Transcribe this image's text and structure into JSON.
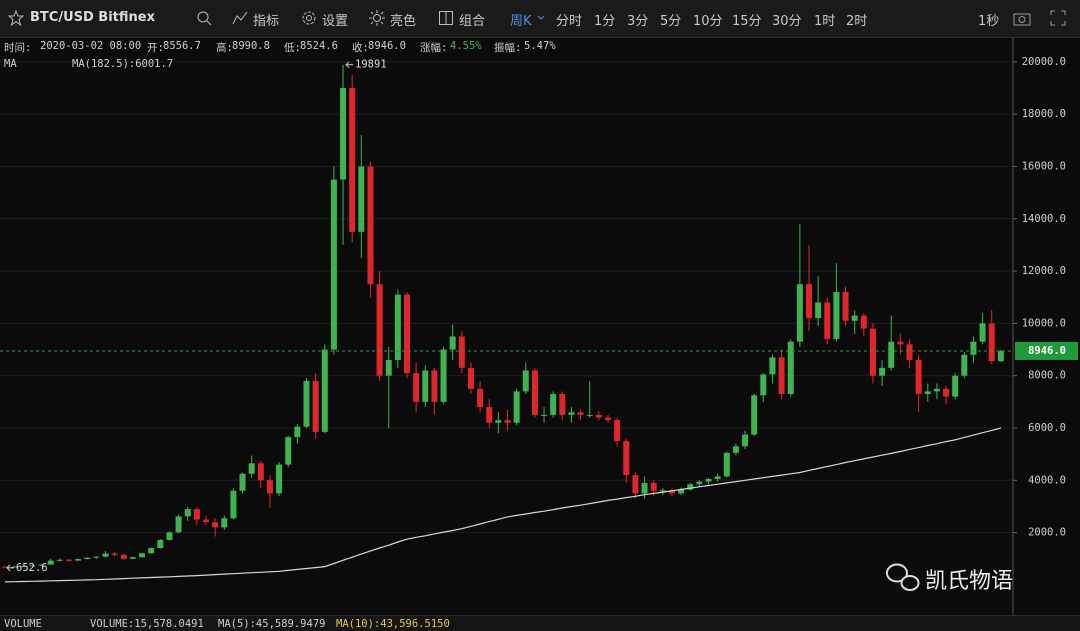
{
  "toolbar": {
    "symbol": "BTC/USD Bitfinex",
    "tools": [
      "指标",
      "设置",
      "亮色",
      "组合"
    ],
    "period": "周K",
    "intervals": [
      "分时",
      "1分",
      "3分",
      "5分",
      "10分",
      "15分",
      "30分",
      "1时",
      "2时"
    ],
    "second": "1秒"
  },
  "info": [
    {
      "label": "时间:",
      "value": "2020-03-02 08:00"
    },
    {
      "label": "开:",
      "value": "8556.7"
    },
    {
      "label": "高:",
      "value": "8990.8"
    },
    {
      "label": "低:",
      "value": "8524.6"
    },
    {
      "label": "收:",
      "value": "8946.0"
    },
    {
      "label": "涨幅:",
      "value": "4.55%"
    },
    {
      "label": "振幅:",
      "value": "5.47%"
    }
  ],
  "ma_legend": {
    "name": "MA",
    "label": "MA(182.5):6001.7"
  },
  "volume_bar": {
    "name": "VOLUME",
    "items": [
      "VOLUME:15,578.0491",
      "MA(5):45,589.9479",
      "MA(10):43,596.5150"
    ]
  },
  "watermark": "凯氏物语",
  "chart_data": {
    "type": "candlestick",
    "ohlc": [
      [
        700,
        720,
        652.6,
        690
      ],
      [
        690,
        720,
        670,
        700
      ],
      [
        700,
        740,
        690,
        720
      ],
      [
        720,
        770,
        700,
        750
      ],
      [
        750,
        800,
        730,
        780
      ],
      [
        780,
        1000,
        770,
        930
      ],
      [
        930,
        1020,
        890,
        960
      ],
      [
        960,
        990,
        900,
        930
      ],
      [
        930,
        1010,
        910,
        990
      ],
      [
        990,
        1060,
        970,
        1040
      ],
      [
        1040,
        1100,
        1000,
        1080
      ],
      [
        1080,
        1290,
        1060,
        1200
      ],
      [
        1200,
        1260,
        1100,
        1150
      ],
      [
        1150,
        1180,
        960,
        1000
      ],
      [
        1000,
        1090,
        980,
        1060
      ],
      [
        1060,
        1230,
        1040,
        1210
      ],
      [
        1210,
        1430,
        1190,
        1410
      ],
      [
        1410,
        1750,
        1390,
        1720
      ],
      [
        1720,
        2050,
        1690,
        2010
      ],
      [
        2010,
        2700,
        1980,
        2620
      ],
      [
        2620,
        3000,
        2450,
        2900
      ],
      [
        2900,
        2980,
        2300,
        2500
      ],
      [
        2500,
        2650,
        2300,
        2400
      ],
      [
        2400,
        2550,
        1850,
        2200
      ],
      [
        2200,
        2650,
        2100,
        2550
      ],
      [
        2550,
        3700,
        2500,
        3600
      ],
      [
        3600,
        4300,
        3500,
        4250
      ],
      [
        4250,
        4950,
        4100,
        4650
      ],
      [
        4650,
        4750,
        3700,
        4000
      ],
      [
        4000,
        4200,
        2950,
        3500
      ],
      [
        3500,
        4700,
        3400,
        4600
      ],
      [
        4600,
        5700,
        4500,
        5650
      ],
      [
        5650,
        6150,
        5400,
        6050
      ],
      [
        6050,
        7900,
        6000,
        7800
      ],
      [
        7800,
        8100,
        5600,
        5850
      ],
      [
        5850,
        9200,
        5800,
        9000
      ],
      [
        9000,
        16000,
        8800,
        15500
      ],
      [
        15500,
        19891,
        13000,
        19000
      ],
      [
        19000,
        19500,
        13100,
        13500
      ],
      [
        13500,
        17200,
        12500,
        16000
      ],
      [
        16000,
        16200,
        11000,
        11500
      ],
      [
        11500,
        12000,
        7800,
        8000
      ],
      [
        8000,
        9100,
        6000,
        8600
      ],
      [
        8600,
        11300,
        8300,
        11100
      ],
      [
        11100,
        11200,
        7900,
        8100
      ],
      [
        8100,
        8500,
        6600,
        7000
      ],
      [
        7000,
        8400,
        6800,
        8200
      ],
      [
        8200,
        8300,
        6500,
        7000
      ],
      [
        7000,
        9100,
        6900,
        9000
      ],
      [
        9000,
        9950,
        8600,
        9500
      ],
      [
        9500,
        9700,
        8100,
        8300
      ],
      [
        8300,
        8500,
        7300,
        7500
      ],
      [
        7500,
        7800,
        6600,
        6800
      ],
      [
        6800,
        7100,
        6000,
        6200
      ],
      [
        6200,
        6600,
        5800,
        6300
      ],
      [
        6300,
        6700,
        5900,
        6200
      ],
      [
        6200,
        7500,
        6100,
        7400
      ],
      [
        7400,
        8500,
        7300,
        8200
      ],
      [
        8200,
        8300,
        6400,
        6500
      ],
      [
        6500,
        6800,
        6200,
        6500
      ],
      [
        6500,
        7400,
        6400,
        7300
      ],
      [
        7300,
        7400,
        6300,
        6500
      ],
      [
        6500,
        6800,
        6200,
        6600
      ],
      [
        6600,
        6700,
        6300,
        6500
      ],
      [
        6500,
        7800,
        6400,
        6500
      ],
      [
        6500,
        6650,
        6300,
        6400
      ],
      [
        6400,
        6500,
        6200,
        6300
      ],
      [
        6300,
        6400,
        5300,
        5500
      ],
      [
        5500,
        5600,
        3900,
        4200
      ],
      [
        4200,
        4300,
        3300,
        3500
      ],
      [
        3500,
        4150,
        3300,
        3900
      ],
      [
        3900,
        4000,
        3400,
        3600
      ],
      [
        3600,
        3700,
        3450,
        3620
      ],
      [
        3620,
        3700,
        3400,
        3500
      ],
      [
        3500,
        3720,
        3450,
        3650
      ],
      [
        3650,
        3900,
        3600,
        3850
      ],
      [
        3850,
        4000,
        3750,
        3950
      ],
      [
        3950,
        4100,
        3850,
        4050
      ],
      [
        4050,
        4250,
        3950,
        4150
      ],
      [
        4150,
        5100,
        4100,
        5050
      ],
      [
        5050,
        5400,
        4950,
        5300
      ],
      [
        5300,
        5900,
        5200,
        5750
      ],
      [
        5750,
        7300,
        5700,
        7250
      ],
      [
        7250,
        8100,
        7000,
        8050
      ],
      [
        8050,
        8800,
        7700,
        8700
      ],
      [
        8700,
        9000,
        7100,
        7300
      ],
      [
        7300,
        9400,
        7200,
        9300
      ],
      [
        9300,
        13800,
        9100,
        11500
      ],
      [
        11500,
        13000,
        9700,
        10200
      ],
      [
        10200,
        11800,
        9900,
        10800
      ],
      [
        10800,
        11000,
        9200,
        9400
      ],
      [
        9400,
        12300,
        9300,
        11200
      ],
      [
        11200,
        11400,
        9900,
        10100
      ],
      [
        10100,
        10500,
        9600,
        10300
      ],
      [
        10300,
        10400,
        9500,
        9800
      ],
      [
        9800,
        10000,
        7700,
        8000
      ],
      [
        8000,
        8600,
        7600,
        8300
      ],
      [
        8300,
        10300,
        8200,
        9300
      ],
      [
        9300,
        9600,
        8800,
        9200
      ],
      [
        9200,
        9400,
        8300,
        8600
      ],
      [
        8600,
        8800,
        6600,
        7300
      ],
      [
        7300,
        7700,
        7000,
        7400
      ],
      [
        7400,
        7700,
        7100,
        7500
      ],
      [
        7500,
        7600,
        6900,
        7200
      ],
      [
        7200,
        8100,
        7100,
        8000
      ],
      [
        8000,
        8900,
        7900,
        8800
      ],
      [
        8800,
        9500,
        8500,
        9300
      ],
      [
        9300,
        10400,
        9200,
        10000
      ],
      [
        10000,
        10500,
        8450,
        8556.7
      ],
      [
        8556.7,
        8990.8,
        8524.6,
        8946
      ]
    ],
    "colors": {
      "up": "#3fb34f",
      "down": "#e0262a"
    },
    "ma": {
      "color": "#d8d8d8",
      "values": [
        115,
        123,
        132,
        140,
        148,
        157,
        165,
        174,
        182,
        191,
        200,
        214,
        228,
        242,
        256,
        270,
        284,
        298,
        312,
        326,
        340,
        358,
        376,
        394,
        412,
        430,
        448,
        466,
        484,
        502,
        520,
        556,
        592,
        628,
        664,
        700,
        820,
        940,
        1060,
        1180,
        1300,
        1410,
        1520,
        1640,
        1750,
        1820,
        1880,
        1950,
        2020,
        2080,
        2150,
        2240,
        2330,
        2420,
        2510,
        2600,
        2660,
        2710,
        2770,
        2820,
        2880,
        2940,
        3000,
        3050,
        3110,
        3170,
        3230,
        3280,
        3340,
        3390,
        3450,
        3500,
        3550,
        3600,
        3650,
        3700,
        3750,
        3800,
        3850,
        3900,
        3950,
        4000,
        4050,
        4100,
        4150,
        4200,
        4250,
        4300,
        4380,
        4450,
        4530,
        4600,
        4680,
        4750,
        4820,
        4890,
        4960,
        5030,
        5100,
        5180,
        5250,
        5330,
        5400,
        5480,
        5550,
        5640,
        5730,
        5820,
        5910,
        6001.7
      ]
    },
    "ylim": [
      -1150,
      20950
    ],
    "yticks": [
      {
        "value": 2000,
        "label": "2000.0"
      },
      {
        "value": 4000,
        "label": "4000.0"
      },
      {
        "value": 6000,
        "label": "6000.0"
      },
      {
        "value": 8000,
        "label": "8000.0"
      },
      {
        "value": 10000,
        "label": "10000.0"
      },
      {
        "value": 12000,
        "label": "12000.0"
      },
      {
        "value": 14000,
        "label": "14000.0"
      },
      {
        "value": 16000,
        "label": "16000.0"
      },
      {
        "value": 18000,
        "label": "18000.0"
      },
      {
        "value": 20000,
        "label": "20000.0"
      }
    ],
    "grid": true,
    "last_price": {
      "value": 8946,
      "label": "8946.0"
    },
    "high_label": 19891,
    "low_label": 652.6
  }
}
